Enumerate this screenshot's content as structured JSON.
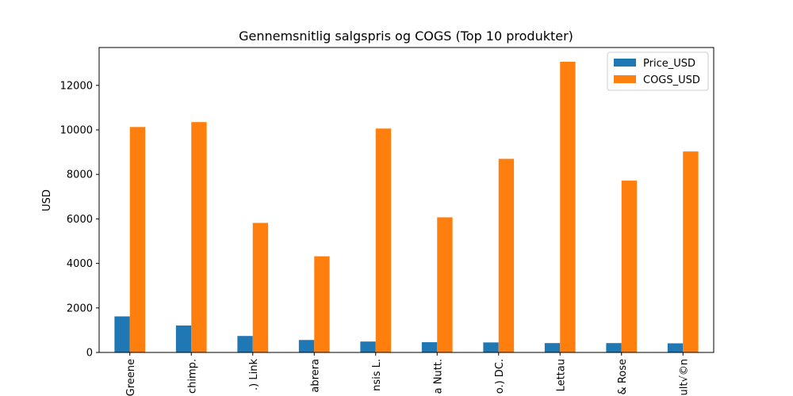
{
  "chart_data": {
    "type": "bar",
    "title": "Gennemsnitlig salgspris og COGS (Top 10 produkter)",
    "xlabel": "",
    "ylabel": "USD",
    "ylim": [
      0,
      13700
    ],
    "yticks": [
      0,
      2000,
      4000,
      6000,
      8000,
      10000,
      12000
    ],
    "categories": [
      "Greene",
      "chimp.",
      ".) Link",
      "abrera",
      "nsis L.",
      "a Nutt.",
      "o.) DC.",
      "Lettau",
      "& Rose",
      "ult√©n"
    ],
    "series": [
      {
        "name": "Price_USD",
        "color": "#1f77b4",
        "values": [
          1620,
          1210,
          740,
          560,
          490,
          460,
          450,
          420,
          420,
          410
        ]
      },
      {
        "name": "COGS_USD",
        "color": "#ff7f0e",
        "values": [
          10130,
          10350,
          5820,
          4320,
          10060,
          6070,
          8700,
          13060,
          7720,
          9030
        ]
      }
    ],
    "legend_position": "top-right",
    "grid": false
  }
}
